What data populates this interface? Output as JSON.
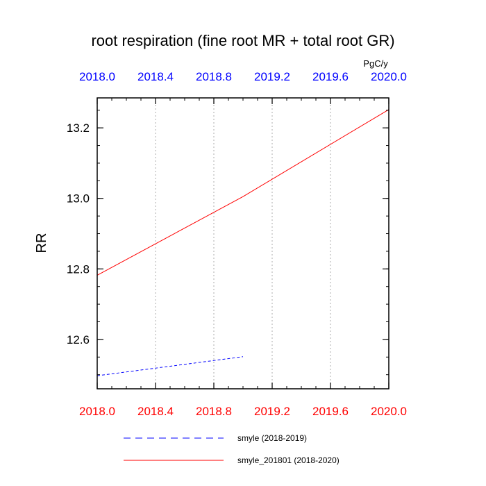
{
  "chart_data": {
    "type": "line",
    "title": "root respiration (fine root MR + total root GR)",
    "units": "PgC/y",
    "ylabel": "RR",
    "xlabel": "",
    "xlim": [
      2018.0,
      2020.0
    ],
    "ylim": [
      12.46,
      13.285
    ],
    "x_ticks": [
      2018.0,
      2018.4,
      2018.8,
      2019.2,
      2019.6,
      2020.0
    ],
    "x_tick_labels": [
      "2018.0",
      "2018.4",
      "2018.8",
      "2019.2",
      "2019.6",
      "2020.0"
    ],
    "top_tick_color": "#0000ff",
    "bottom_tick_color": "#ff0000",
    "y_ticks": [
      12.6,
      12.8,
      13.0,
      13.2
    ],
    "y_tick_labels": [
      "12.6",
      "12.8",
      "13.0",
      "13.2"
    ],
    "grid": "vertical dotted at x ticks",
    "legend_position": "bottom",
    "series": [
      {
        "name": "smyle (2018-2019)",
        "color": "#0000ff",
        "dash": "dashed",
        "x": [
          2018.0,
          2019.0
        ],
        "y": [
          12.497,
          12.551
        ]
      },
      {
        "name": "smyle_201801 (2018-2020)",
        "color": "#ff0000",
        "dash": "solid",
        "x": [
          2018.0,
          2019.0,
          2020.0
        ],
        "y": [
          12.782,
          13.005,
          13.252
        ]
      }
    ]
  }
}
